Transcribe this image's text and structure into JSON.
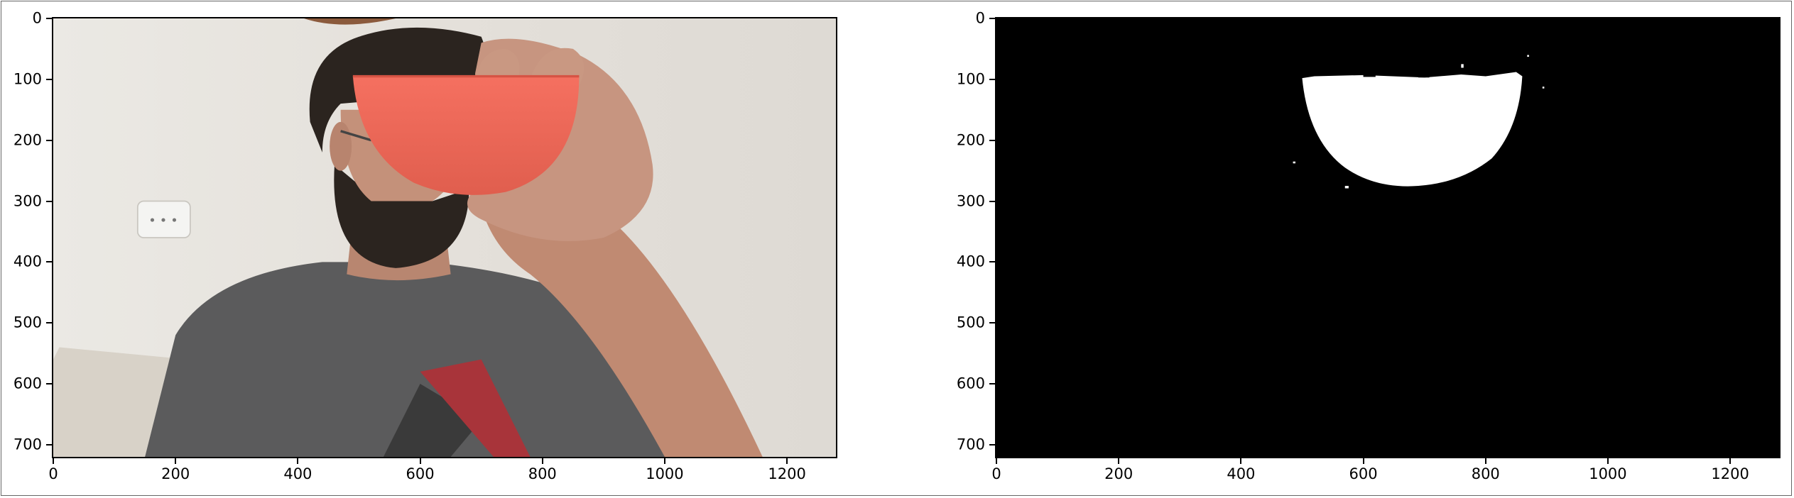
{
  "axes": {
    "x_ticks": [
      "0",
      "200",
      "400",
      "600",
      "800",
      "1000",
      "1200"
    ],
    "y_ticks": [
      "0",
      "100",
      "200",
      "300",
      "400",
      "500",
      "600",
      "700"
    ]
  },
  "left_panel": {
    "description": "webcam photo of person holding an orange-red bowl",
    "colors": {
      "wall": "#e6e3de",
      "bowl": "#ee6a58",
      "shirt": "#5a5a5a",
      "skin": "#c49078",
      "hair": "#2b241f",
      "shirt_logo": "#a8343a"
    }
  },
  "right_panel": {
    "description": "binary mask of detected bowl region",
    "colors": {
      "background": "#000000",
      "mask": "#ffffff"
    }
  }
}
